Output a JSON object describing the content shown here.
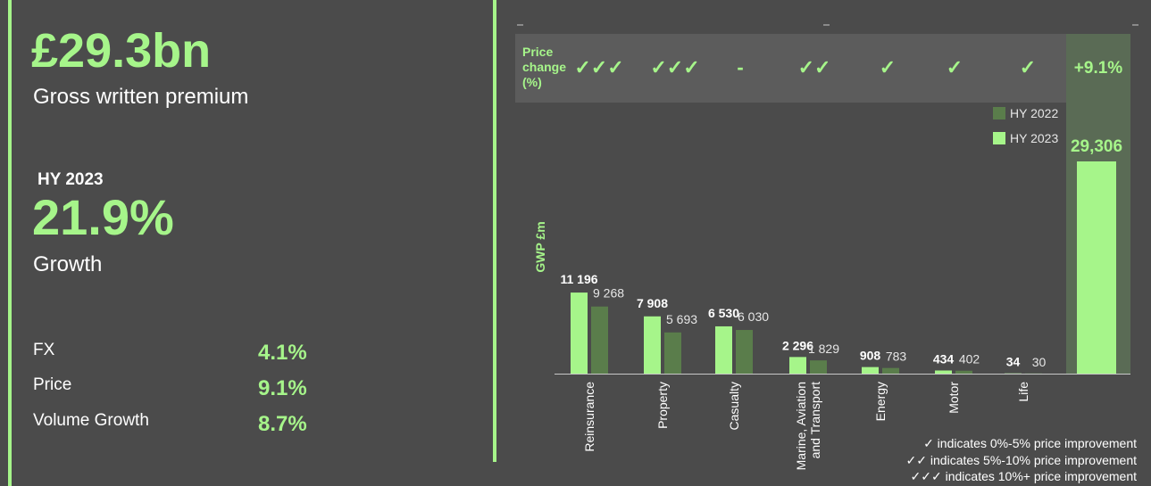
{
  "summary": {
    "gwp_value": "£29.3bn",
    "gwp_label": "Gross written premium",
    "period": "HY 2023",
    "growth_value": "21.9%",
    "growth_label": "Growth",
    "drivers": [
      {
        "label": "FX",
        "value": "4.1%"
      },
      {
        "label": "Price",
        "value": "9.1%"
      },
      {
        "label": "Volume Growth",
        "value": "8.7%"
      }
    ]
  },
  "price_change": {
    "label_lines": [
      "Price",
      "change",
      "(%)"
    ],
    "ticks": [
      "✓✓✓",
      "✓✓✓",
      "-",
      "✓✓",
      "✓",
      "✓",
      "✓"
    ],
    "total": "+9.1%"
  },
  "legend": {
    "prev": "HY 2022",
    "curr": "HY 2023"
  },
  "footnotes": [
    "✓ indicates 0%-5% price improvement",
    "✓✓ indicates 5%-10% price improvement",
    "✓✓✓ indicates 10%+ price improvement"
  ],
  "colors": {
    "accent": "#a6f58a",
    "prev": "#5a7d4b",
    "background": "#4b4b4b"
  },
  "chart_data": {
    "type": "bar",
    "ylabel": "GWP £m",
    "categories": [
      "Reinsurance",
      "Property",
      "Casualty",
      "Marine, Aviation and Transport",
      "Energy",
      "Motor",
      "Life"
    ],
    "category_lines": [
      [
        "Reinsurance"
      ],
      [
        "Property"
      ],
      [
        "Casualty"
      ],
      [
        "Marine, Aviation",
        "and Transport"
      ],
      [
        "Energy"
      ],
      [
        "Motor"
      ],
      [
        "Life"
      ]
    ],
    "series": [
      {
        "name": "HY 2023",
        "values": [
          11196,
          7908,
          6530,
          2296,
          908,
          434,
          34
        ],
        "labels": [
          "11 196",
          "7 908",
          "6 530",
          "2 296",
          "908",
          "434",
          "34"
        ]
      },
      {
        "name": "HY 2022",
        "values": [
          9268,
          5693,
          6030,
          1829,
          783,
          402,
          30
        ],
        "labels": [
          "9 268",
          "5 693",
          "6 030",
          "1 829",
          "783",
          "402",
          "30"
        ]
      }
    ],
    "total": {
      "value": 29306,
      "label": "29,306"
    },
    "ylim": [
      0,
      29306
    ],
    "legend_position": "top-right",
    "grid": false
  }
}
